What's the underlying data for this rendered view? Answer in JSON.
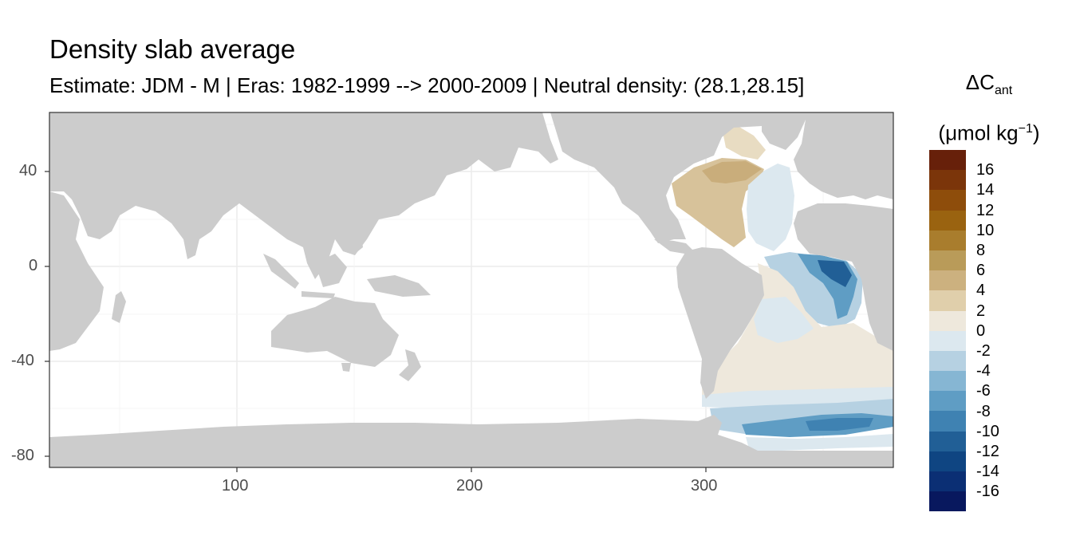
{
  "title": "Density slab average",
  "subtitle": "Estimate: JDM - M | Eras: 1982-1999 --> 2000-2009 | Neutral density: (28.1,28.15]",
  "legend": {
    "title_symbol": "ΔC",
    "title_sub": "ant",
    "unit_pre": "(μmol kg",
    "unit_sup": "−1",
    "unit_post": ")",
    "labels": [
      "16",
      "14",
      "12",
      "10",
      "8",
      "6",
      "4",
      "2",
      "0",
      "-2",
      "-4",
      "-6",
      "-8",
      "-10",
      "-12",
      "-14",
      "-16"
    ],
    "colors": [
      "#67200a",
      "#7b350a",
      "#8e4d0b",
      "#9a6310",
      "#a97d2d",
      "#b99b59",
      "#ccb17f",
      "#e0cfab",
      "#eee8dc",
      "#dce8ef",
      "#b6d1e2",
      "#86b6d3",
      "#5f9dc4",
      "#3f82b2",
      "#215f96",
      "#0f4582",
      "#0b2f74",
      "#08185e"
    ]
  },
  "axes": {
    "x_ticks": [
      "100",
      "200",
      "300"
    ],
    "y_ticks": [
      "40",
      "0",
      "-40",
      "-80"
    ]
  },
  "map": {
    "land_color": "#cccccc",
    "ocean_color": "#ffffff",
    "x_range": [
      20,
      380
    ],
    "y_range": [
      -85,
      65
    ]
  }
}
